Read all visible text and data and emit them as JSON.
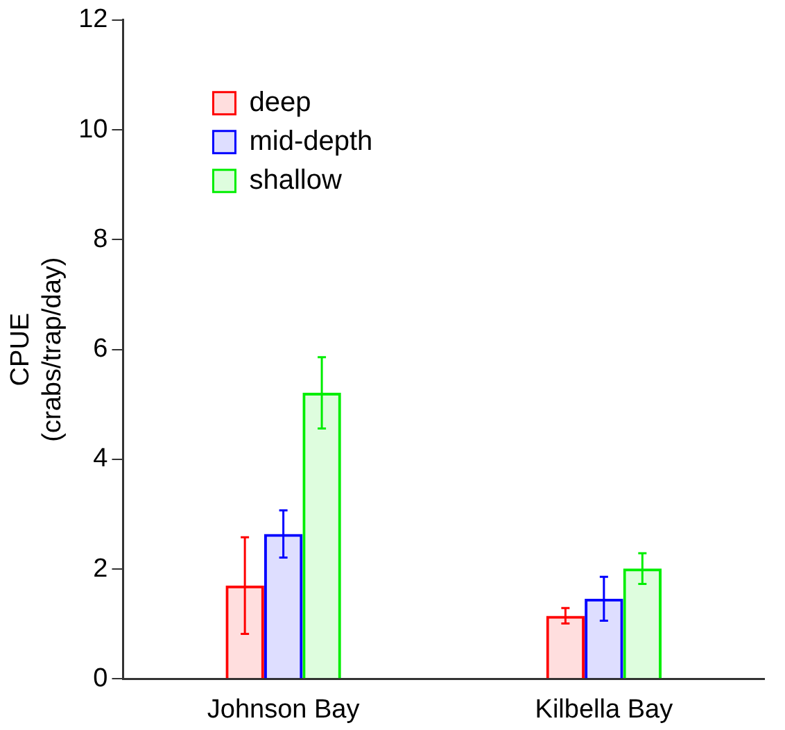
{
  "chart_data": {
    "type": "bar",
    "ylabel": "CPUE\n(crabs/trap/day)",
    "categories": [
      "Johnson Bay",
      "Kilbella Bay"
    ],
    "series": [
      {
        "name": "deep",
        "color": "#ff0000",
        "values": [
          1.7,
          1.15
        ],
        "errors": [
          0.88,
          0.14
        ]
      },
      {
        "name": "mid-depth",
        "color": "#0000ff",
        "values": [
          2.64,
          1.46
        ],
        "errors": [
          0.43,
          0.4
        ]
      },
      {
        "name": "shallow",
        "color": "#00ee00",
        "values": [
          5.21,
          2.01
        ],
        "errors": [
          0.65,
          0.28
        ]
      }
    ],
    "ylim": [
      0,
      12
    ],
    "yticks": [
      0,
      2,
      4,
      6,
      8,
      10,
      12
    ],
    "grid": false,
    "legend": "top left"
  }
}
